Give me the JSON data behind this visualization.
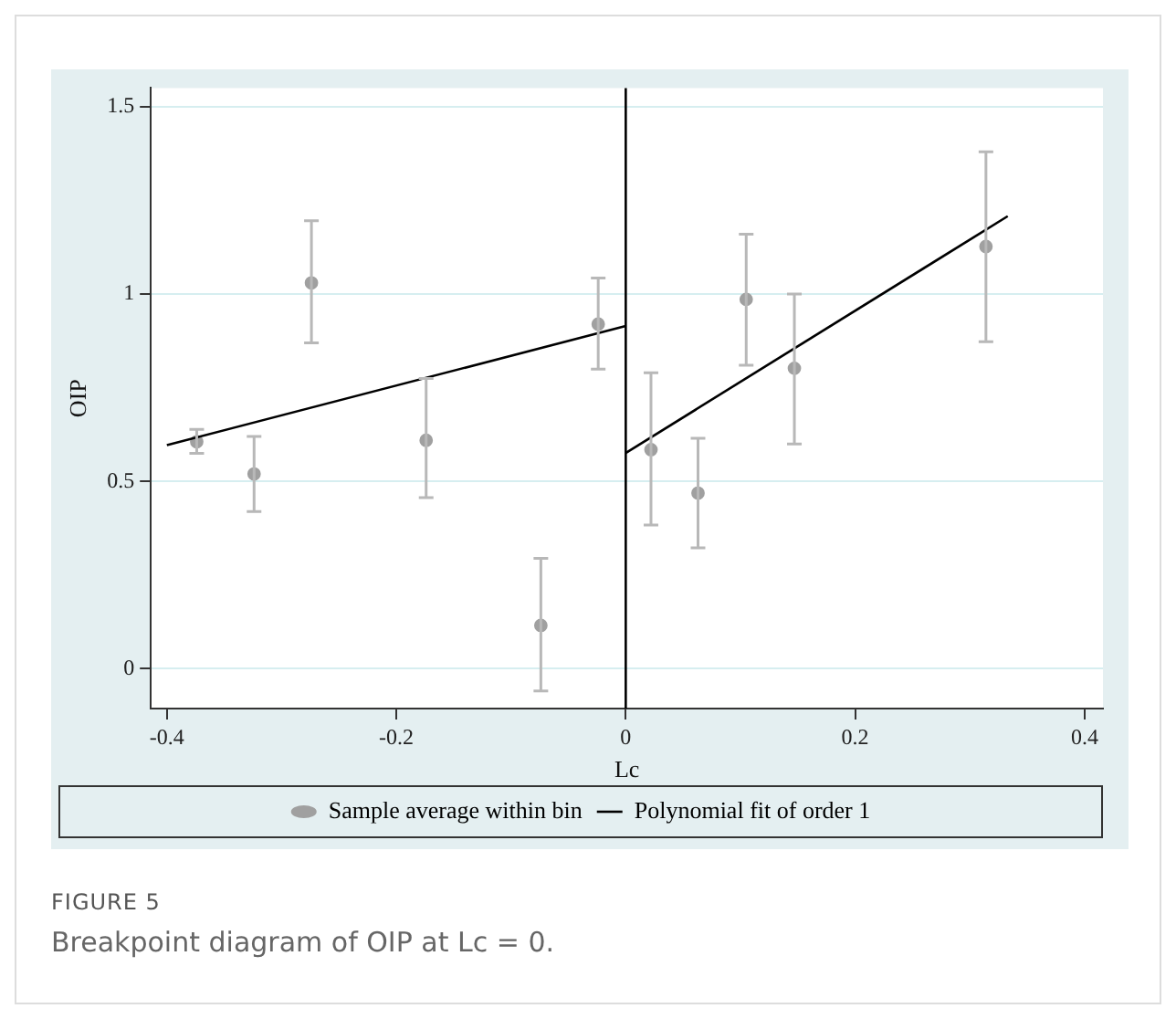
{
  "chart_data": {
    "type": "scatter",
    "xlabel": "Lc",
    "ylabel": "OIP",
    "xlim": [
      -0.414,
      0.416
    ],
    "xticks": [
      -0.4,
      -0.2,
      0,
      0.2,
      0.4
    ],
    "ylim": [
      -0.106,
      1.55
    ],
    "yticks": [
      0,
      0.5,
      1,
      1.5
    ],
    "grid": "y",
    "legend": "bottom",
    "ref_lines": [
      {
        "axis": "x",
        "value": 0,
        "color": "#000000"
      }
    ],
    "series": [
      {
        "name": "Sample average within bin",
        "type": "scatter",
        "marker": "circle",
        "color": "#a0a0a0",
        "x": [
          -0.374,
          -0.324,
          -0.274,
          -0.174,
          -0.074,
          -0.024,
          0.022,
          0.063,
          0.105,
          0.147,
          0.314
        ],
        "values": [
          0.606,
          0.52,
          1.03,
          0.61,
          0.116,
          0.92,
          0.585,
          0.469,
          0.986,
          0.802,
          1.127
        ],
        "errors": [
          [
            0.575,
            0.639
          ],
          [
            0.42,
            0.62
          ],
          [
            0.87,
            1.196
          ],
          [
            0.457,
            0.775
          ],
          [
            -0.059,
            0.295
          ],
          [
            0.8,
            1.043
          ],
          [
            0.384,
            0.79
          ],
          [
            0.323,
            0.615
          ],
          [
            0.81,
            1.16
          ],
          [
            0.6,
            1.0
          ],
          [
            0.873,
            1.38
          ]
        ]
      },
      {
        "name": "Polynomial fit of order 1",
        "type": "line",
        "marker": "none",
        "color": "#000000",
        "x": [
          -0.4,
          0
        ],
        "values": [
          0.597,
          0.915
        ]
      },
      {
        "type": "line",
        "marker": "none",
        "color": "#000000",
        "x": [
          0,
          0.333
        ],
        "values": [
          0.576,
          1.208
        ]
      }
    ],
    "annotations": [
      "FIGURE 5",
      "Breakpoint diagram of OIP at Lc = 0."
    ]
  }
}
